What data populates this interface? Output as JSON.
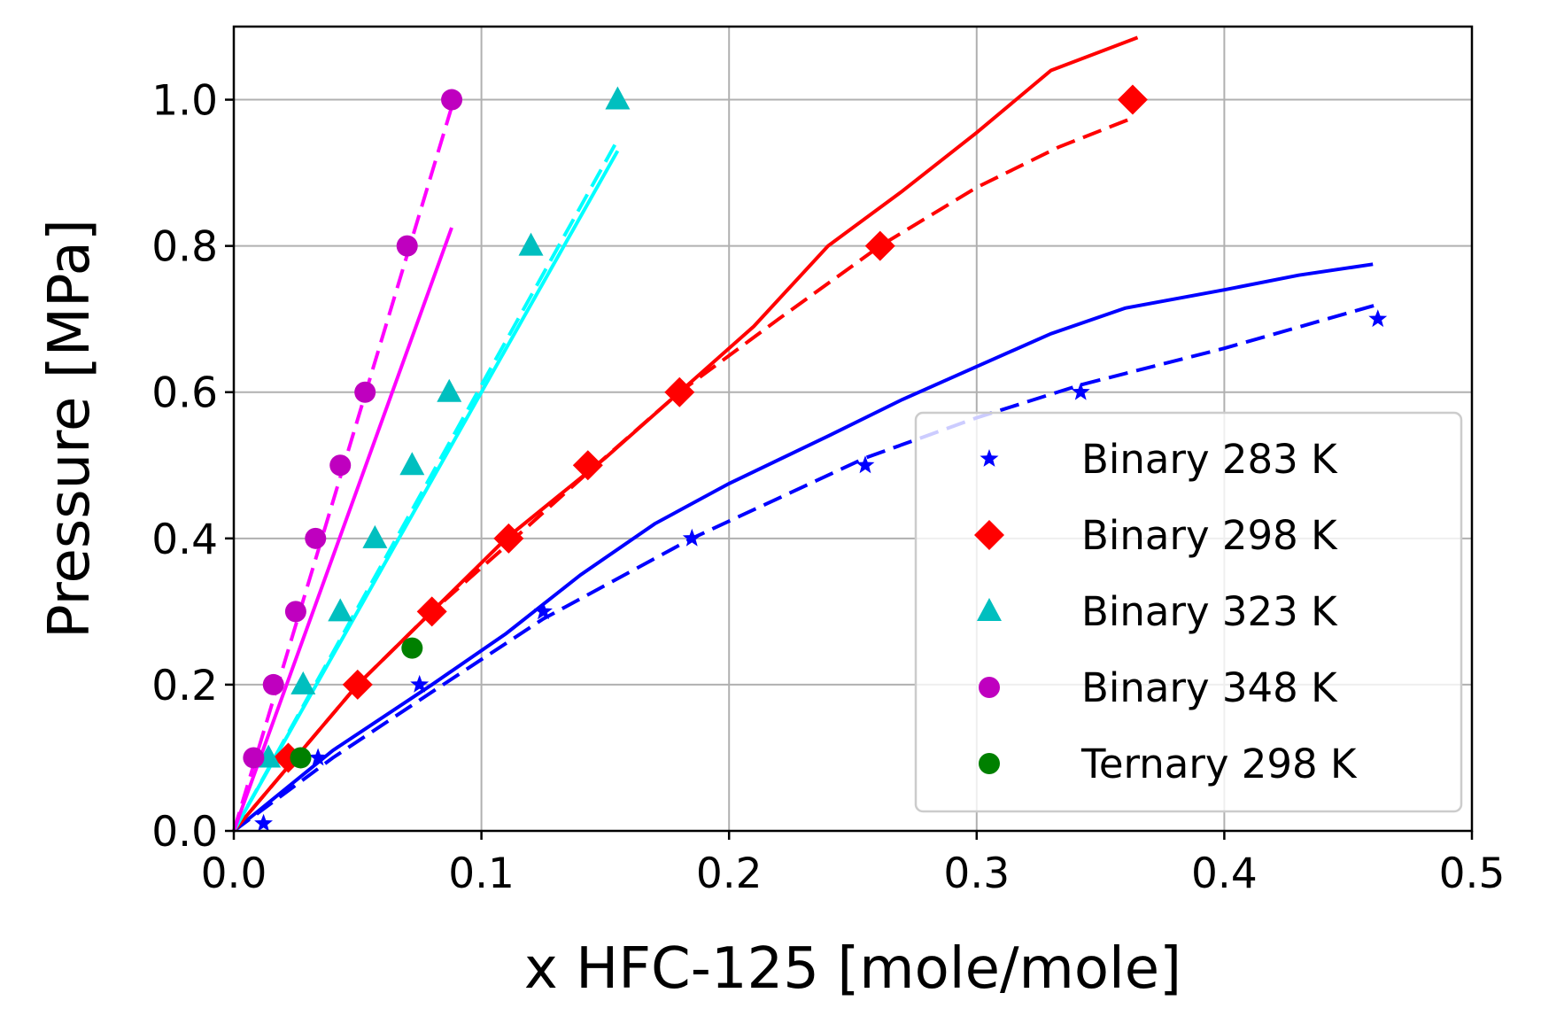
{
  "chart_data": {
    "type": "scatter",
    "xlabel": "x HFC-125 [mole/mole]",
    "ylabel": "Pressure [MPa]",
    "xlim": [
      0.0,
      0.5
    ],
    "ylim": [
      0.0,
      1.1
    ],
    "xticks": [
      0.0,
      0.1,
      0.2,
      0.3,
      0.4,
      0.5
    ],
    "xtick_labels": [
      "0.0",
      "0.1",
      "0.2",
      "0.3",
      "0.4",
      "0.5"
    ],
    "yticks": [
      0.0,
      0.2,
      0.4,
      0.6,
      0.8,
      1.0
    ],
    "ytick_labels": [
      "0.0",
      "0.2",
      "0.4",
      "0.6",
      "0.8",
      "1.0"
    ],
    "grid": true,
    "legend_position": "lower right",
    "series": [
      {
        "name": "Binary 283 K",
        "marker": "star",
        "color": "#0000ff",
        "points": [
          [
            0.012,
            0.01
          ],
          [
            0.034,
            0.1
          ],
          [
            0.075,
            0.2
          ],
          [
            0.125,
            0.3
          ],
          [
            0.185,
            0.4
          ],
          [
            0.255,
            0.5
          ],
          [
            0.342,
            0.6
          ],
          [
            0.462,
            0.7
          ]
        ],
        "line_solid": [
          [
            0.0,
            0.0
          ],
          [
            0.04,
            0.11
          ],
          [
            0.08,
            0.2
          ],
          [
            0.11,
            0.27
          ],
          [
            0.14,
            0.35
          ],
          [
            0.17,
            0.42
          ],
          [
            0.2,
            0.475
          ],
          [
            0.24,
            0.54
          ],
          [
            0.27,
            0.59
          ],
          [
            0.3,
            0.635
          ],
          [
            0.33,
            0.68
          ],
          [
            0.36,
            0.715
          ],
          [
            0.4,
            0.74
          ],
          [
            0.43,
            0.76
          ],
          [
            0.46,
            0.775
          ]
        ],
        "line_dashed": [
          [
            0.0,
            0.0
          ],
          [
            0.04,
            0.1
          ],
          [
            0.08,
            0.19
          ],
          [
            0.125,
            0.29
          ],
          [
            0.185,
            0.4
          ],
          [
            0.255,
            0.51
          ],
          [
            0.3,
            0.565
          ],
          [
            0.342,
            0.61
          ],
          [
            0.4,
            0.66
          ],
          [
            0.462,
            0.72
          ]
        ]
      },
      {
        "name": "Binary 298 K",
        "marker": "diamond",
        "color": "#ff0000",
        "points": [
          [
            0.022,
            0.1
          ],
          [
            0.05,
            0.2
          ],
          [
            0.08,
            0.3
          ],
          [
            0.111,
            0.4
          ],
          [
            0.143,
            0.5
          ],
          [
            0.18,
            0.6
          ],
          [
            0.261,
            0.8
          ],
          [
            0.363,
            1.0
          ]
        ],
        "line_solid": [
          [
            0.0,
            0.0
          ],
          [
            0.05,
            0.2
          ],
          [
            0.08,
            0.3
          ],
          [
            0.11,
            0.4
          ],
          [
            0.15,
            0.51
          ],
          [
            0.18,
            0.6
          ],
          [
            0.21,
            0.69
          ],
          [
            0.24,
            0.8
          ],
          [
            0.27,
            0.875
          ],
          [
            0.3,
            0.955
          ],
          [
            0.33,
            1.04
          ],
          [
            0.365,
            1.085
          ]
        ],
        "line_dashed": [
          [
            0.0,
            0.0
          ],
          [
            0.05,
            0.2
          ],
          [
            0.08,
            0.3
          ],
          [
            0.11,
            0.39
          ],
          [
            0.143,
            0.49
          ],
          [
            0.18,
            0.6
          ],
          [
            0.22,
            0.7
          ],
          [
            0.261,
            0.8
          ],
          [
            0.3,
            0.88
          ],
          [
            0.333,
            0.935
          ],
          [
            0.363,
            0.975
          ]
        ]
      },
      {
        "name": "Binary 323 K",
        "marker": "triangle",
        "color": "#00bfbf",
        "line_color": "#00ffff",
        "points": [
          [
            0.014,
            0.1
          ],
          [
            0.028,
            0.2
          ],
          [
            0.043,
            0.3
          ],
          [
            0.057,
            0.4
          ],
          [
            0.072,
            0.5
          ],
          [
            0.087,
            0.6
          ],
          [
            0.12,
            0.8
          ],
          [
            0.155,
            1.0
          ]
        ],
        "line_solid": [
          [
            0.0,
            0.0
          ],
          [
            0.155,
            0.93
          ]
        ],
        "line_dashed": [
          [
            0.0,
            0.0
          ],
          [
            0.155,
            0.945
          ]
        ]
      },
      {
        "name": "Binary 348 K",
        "marker": "circle",
        "color": "#bf00bf",
        "line_color": "#ff00ff",
        "points": [
          [
            0.008,
            0.1
          ],
          [
            0.016,
            0.2
          ],
          [
            0.025,
            0.3
          ],
          [
            0.033,
            0.4
          ],
          [
            0.043,
            0.5
          ],
          [
            0.053,
            0.6
          ],
          [
            0.07,
            0.8
          ],
          [
            0.088,
            1.0
          ]
        ],
        "line_solid": [
          [
            0.0,
            0.0
          ],
          [
            0.088,
            0.825
          ]
        ],
        "line_dashed": [
          [
            0.0,
            0.0
          ],
          [
            0.088,
            0.99
          ]
        ]
      },
      {
        "name": "Ternary 298 K",
        "marker": "circle",
        "color": "#008000",
        "points": [
          [
            0.027,
            0.1
          ],
          [
            0.072,
            0.25
          ]
        ]
      }
    ]
  }
}
